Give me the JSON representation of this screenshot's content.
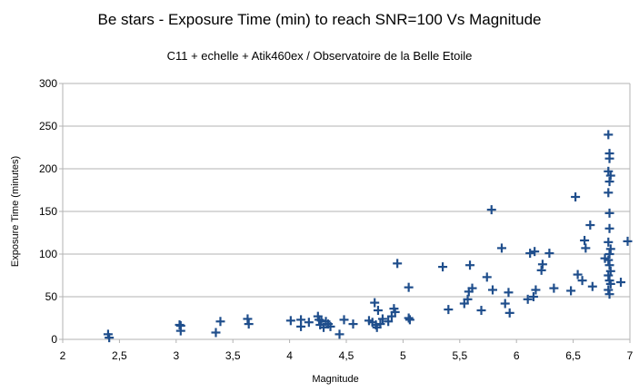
{
  "chart_data": {
    "type": "scatter",
    "title": "Be stars - Exposure Time (min) to reach SNR=100 Vs Magnitude",
    "subtitle": "C11 + echelle + Atik460ex / Observatoire de la Belle Etoile",
    "xlabel": "Magnitude",
    "ylabel": "Exposure Time (minutes)",
    "xlim": [
      2,
      7
    ],
    "ylim": [
      0,
      300
    ],
    "x_ticks": [
      2,
      2.5,
      3,
      3.5,
      4,
      4.5,
      5,
      5.5,
      6,
      6.5,
      7
    ],
    "x_tick_labels": [
      "2",
      "2,5",
      "3",
      "3,5",
      "4",
      "4,5",
      "5",
      "5,5",
      "6",
      "6,5",
      "7"
    ],
    "y_ticks": [
      0,
      50,
      100,
      150,
      200,
      250,
      300
    ],
    "y_tick_labels": [
      "0",
      "50",
      "100",
      "150",
      "200",
      "250",
      "300"
    ],
    "grid": true,
    "marker": "plus",
    "color": "#1f4e8c",
    "series": [
      {
        "name": "Be stars",
        "points": [
          [
            2.4,
            6
          ],
          [
            2.41,
            2
          ],
          [
            3.03,
            17
          ],
          [
            3.04,
            16
          ],
          [
            3.04,
            10
          ],
          [
            3.35,
            8
          ],
          [
            3.39,
            21
          ],
          [
            3.63,
            24
          ],
          [
            3.64,
            18
          ],
          [
            4.01,
            22
          ],
          [
            4.1,
            23
          ],
          [
            4.1,
            15
          ],
          [
            4.17,
            20
          ],
          [
            4.25,
            27
          ],
          [
            4.26,
            23
          ],
          [
            4.27,
            17
          ],
          [
            4.28,
            22
          ],
          [
            4.3,
            14
          ],
          [
            4.32,
            21
          ],
          [
            4.34,
            18
          ],
          [
            4.36,
            15
          ],
          [
            4.44,
            6
          ],
          [
            4.48,
            23
          ],
          [
            4.56,
            18
          ],
          [
            4.7,
            22
          ],
          [
            4.73,
            20
          ],
          [
            4.75,
            43
          ],
          [
            4.76,
            17
          ],
          [
            4.77,
            14
          ],
          [
            4.78,
            34
          ],
          [
            4.8,
            18
          ],
          [
            4.82,
            24
          ],
          [
            4.87,
            21
          ],
          [
            4.9,
            27
          ],
          [
            4.92,
            36
          ],
          [
            4.93,
            32
          ],
          [
            4.95,
            89
          ],
          [
            5.05,
            61
          ],
          [
            5.05,
            25
          ],
          [
            5.06,
            23
          ],
          [
            5.35,
            85
          ],
          [
            5.4,
            35
          ],
          [
            5.54,
            42
          ],
          [
            5.57,
            47
          ],
          [
            5.58,
            56
          ],
          [
            5.59,
            87
          ],
          [
            5.61,
            60
          ],
          [
            5.69,
            34
          ],
          [
            5.74,
            73
          ],
          [
            5.78,
            152
          ],
          [
            5.79,
            58
          ],
          [
            5.87,
            107
          ],
          [
            5.9,
            42
          ],
          [
            5.93,
            55
          ],
          [
            5.94,
            31
          ],
          [
            6.1,
            47
          ],
          [
            6.12,
            101
          ],
          [
            6.15,
            50
          ],
          [
            6.16,
            103
          ],
          [
            6.17,
            58
          ],
          [
            6.22,
            81
          ],
          [
            6.23,
            88
          ],
          [
            6.29,
            101
          ],
          [
            6.33,
            60
          ],
          [
            6.48,
            57
          ],
          [
            6.52,
            167
          ],
          [
            6.54,
            76
          ],
          [
            6.58,
            69
          ],
          [
            6.6,
            116
          ],
          [
            6.61,
            107
          ],
          [
            6.65,
            134
          ],
          [
            6.67,
            62
          ],
          [
            6.78,
            95
          ],
          [
            6.81,
            240
          ],
          [
            6.82,
            218
          ],
          [
            6.82,
            212
          ],
          [
            6.81,
            197
          ],
          [
            6.83,
            192
          ],
          [
            6.82,
            185
          ],
          [
            6.81,
            172
          ],
          [
            6.82,
            148
          ],
          [
            6.82,
            130
          ],
          [
            6.81,
            114
          ],
          [
            6.83,
            106
          ],
          [
            6.82,
            100
          ],
          [
            6.81,
            93
          ],
          [
            6.82,
            87
          ],
          [
            6.83,
            80
          ],
          [
            6.81,
            75
          ],
          [
            6.82,
            69
          ],
          [
            6.83,
            65
          ],
          [
            6.81,
            58
          ],
          [
            6.82,
            53
          ],
          [
            6.92,
            67
          ],
          [
            6.98,
            115
          ]
        ]
      }
    ]
  }
}
